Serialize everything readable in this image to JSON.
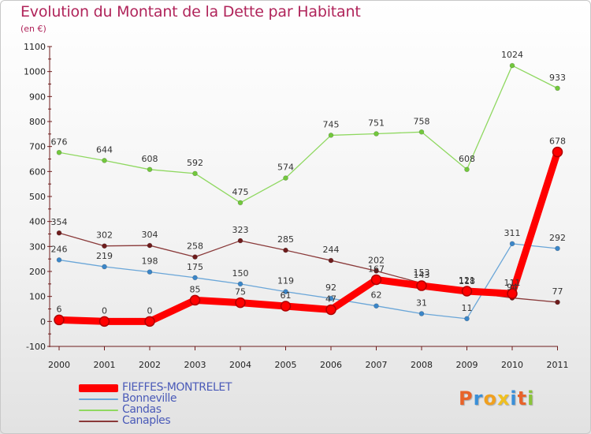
{
  "header": {
    "title": "Evolution du Montant de la Dette par Habitant",
    "subtitle": "(en €)"
  },
  "logo": {
    "text": "Proxiti"
  },
  "colors": {
    "title": "#b0245a",
    "legend_text": "#4a5ab8"
  },
  "chart_data": {
    "type": "line",
    "title": "Evolution du Montant de la Dette par Habitant",
    "subtitle": "(en €)",
    "xlabel": "",
    "ylabel": "",
    "ylim": [
      -100,
      1100
    ],
    "yticks": [
      -100,
      0,
      100,
      200,
      300,
      400,
      500,
      600,
      700,
      800,
      900,
      1000,
      1100
    ],
    "grid": false,
    "legend_position": "bottom-left",
    "categories": [
      "2000",
      "2001",
      "2002",
      "2003",
      "2004",
      "2005",
      "2006",
      "2007",
      "2008",
      "2009",
      "2010",
      "2011"
    ],
    "series": [
      {
        "name": "FIEFFES-MONTRELET",
        "color": "#ff0000",
        "marker": "#cc0000",
        "width": 9,
        "values": [
          6,
          0,
          0,
          85,
          75,
          61,
          47,
          167,
          143,
          121,
          111,
          678
        ],
        "labels": [
          "6",
          "0",
          "0",
          "85",
          "75",
          "61",
          "47",
          "167",
          "143",
          "121",
          "111",
          "678"
        ]
      },
      {
        "name": "Bonneville",
        "color": "#6aa6d8",
        "marker": "#3b86c8",
        "width": 1.3,
        "values": [
          246,
          219,
          198,
          175,
          150,
          119,
          92,
          62,
          31,
          11,
          311,
          292
        ],
        "labels": [
          "246",
          "219",
          "198",
          "175",
          "150",
          "119",
          "92",
          "62",
          "31",
          "11",
          "311",
          "292"
        ]
      },
      {
        "name": "Candas",
        "color": "#8fd860",
        "marker": "#72c83c",
        "width": 1.3,
        "values": [
          676,
          644,
          608,
          592,
          475,
          574,
          745,
          751,
          758,
          608,
          1024,
          933
        ],
        "labels": [
          "676",
          "644",
          "608",
          "592",
          "475",
          "574",
          "745",
          "751",
          "758",
          "608",
          "1024",
          "933"
        ]
      },
      {
        "name": "Canaples",
        "color": "#8a3a3a",
        "marker": "#6e1c1c",
        "width": 1.3,
        "values": [
          354,
          302,
          304,
          258,
          323,
          285,
          244,
          202,
          153,
          118,
          94,
          77
        ],
        "labels": [
          "354",
          "302",
          "304",
          "258",
          "323",
          "285",
          "244",
          "202",
          "153",
          "118",
          "94",
          "77"
        ]
      }
    ]
  }
}
